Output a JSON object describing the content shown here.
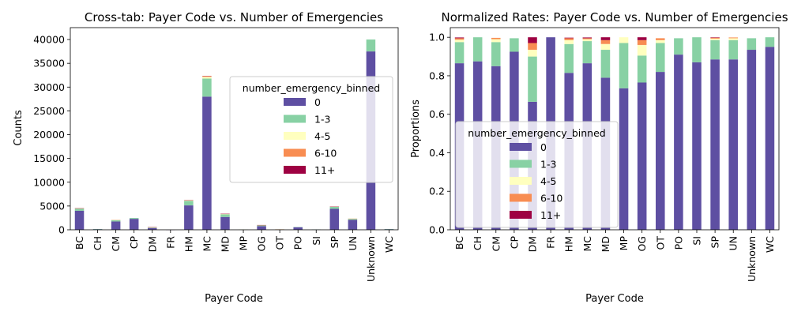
{
  "colors": {
    "0": "#5e4fa2",
    "1-3": "#88d1a4",
    "4-5": "#ffffbf",
    "6-10": "#f88d52",
    "11+": "#9e0142"
  },
  "chart_data": [
    {
      "type": "bar",
      "stacked": true,
      "title": "Cross-tab: Payer Code vs. Number of Emergencies",
      "xlabel": "Payer Code",
      "ylabel": "Counts",
      "ylim": [
        0,
        42500
      ],
      "yticks": [
        0,
        5000,
        10000,
        15000,
        20000,
        25000,
        30000,
        35000,
        40000
      ],
      "grid": false,
      "legend": {
        "title": "number_emergency_binned",
        "position": "right"
      },
      "categories": [
        "BC",
        "CH",
        "CM",
        "CP",
        "DM",
        "FR",
        "HM",
        "MC",
        "MD",
        "MP",
        "OG",
        "OT",
        "PO",
        "SI",
        "SP",
        "UN",
        "Unknown",
        "WC"
      ],
      "series": [
        {
          "name": "0",
          "values": [
            4000,
            130,
            1750,
            2300,
            370,
            1,
            5130,
            28000,
            2700,
            50,
            770,
            75,
            540,
            50,
            4400,
            2100,
            37500,
            130
          ]
        },
        {
          "name": "1-3",
          "values": [
            470,
            20,
            300,
            180,
            130,
            0,
            950,
            3800,
            550,
            20,
            150,
            15,
            50,
            10,
            450,
            230,
            2500,
            7
          ]
        },
        {
          "name": "4-5",
          "values": [
            25,
            0,
            10,
            0,
            15,
            0,
            110,
            350,
            60,
            2,
            60,
            1,
            0,
            0,
            15,
            10,
            0,
            0
          ]
        },
        {
          "name": "6-10",
          "values": [
            20,
            0,
            5,
            0,
            15,
            0,
            50,
            150,
            40,
            0,
            20,
            1,
            0,
            0,
            10,
            5,
            0,
            0
          ]
        },
        {
          "name": "11+",
          "values": [
            5,
            0,
            0,
            0,
            20,
            0,
            10,
            50,
            20,
            0,
            10,
            0,
            0,
            0,
            5,
            0,
            0,
            0
          ]
        }
      ]
    },
    {
      "type": "bar",
      "stacked": true,
      "title": "Normalized Rates: Payer Code vs. Number of Emergencies",
      "xlabel": "Payer Code",
      "ylabel": "Proportions",
      "ylim": [
        0,
        1.05
      ],
      "yticks": [
        0,
        0.2,
        0.4,
        0.6,
        0.8,
        1.0
      ],
      "ytick_labels": [
        "0.0",
        "0.2",
        "0.4",
        "0.6",
        "0.8",
        "1.0"
      ],
      "grid": false,
      "legend": {
        "title": "number_emergency_binned",
        "position": "lower-left"
      },
      "categories": [
        "BC",
        "CH",
        "CM",
        "CP",
        "DM",
        "FR",
        "HM",
        "MC",
        "MD",
        "MP",
        "OG",
        "OT",
        "PO",
        "SI",
        "SP",
        "UN",
        "Unknown",
        "WC"
      ],
      "series": [
        {
          "name": "0",
          "values": [
            0.865,
            0.875,
            0.85,
            0.925,
            0.665,
            1.0,
            0.815,
            0.865,
            0.79,
            0.735,
            0.765,
            0.82,
            0.91,
            0.87,
            0.885,
            0.885,
            0.935,
            0.95
          ]
        },
        {
          "name": "1-3",
          "values": [
            0.11,
            0.125,
            0.125,
            0.07,
            0.235,
            0.0,
            0.15,
            0.115,
            0.145,
            0.235,
            0.14,
            0.15,
            0.085,
            0.13,
            0.1,
            0.1,
            0.06,
            0.05
          ]
        },
        {
          "name": "4-5",
          "values": [
            0.012,
            0.0,
            0.015,
            0.0,
            0.035,
            0.0,
            0.02,
            0.01,
            0.03,
            0.03,
            0.055,
            0.015,
            0.0,
            0.0,
            0.008,
            0.01,
            0.0,
            0.0
          ]
        },
        {
          "name": "6-10",
          "values": [
            0.008,
            0.0,
            0.007,
            0.0,
            0.035,
            0.0,
            0.01,
            0.005,
            0.02,
            0.0,
            0.025,
            0.01,
            0.0,
            0.0,
            0.005,
            0.004,
            0.0,
            0.0
          ]
        },
        {
          "name": "11+",
          "values": [
            0.004,
            0.0,
            0.0,
            0.0,
            0.03,
            0.0,
            0.003,
            0.004,
            0.015,
            0.0,
            0.015,
            0.0,
            0.0,
            0.0,
            0.002,
            0.0,
            0.0,
            0.0
          ]
        }
      ]
    }
  ]
}
